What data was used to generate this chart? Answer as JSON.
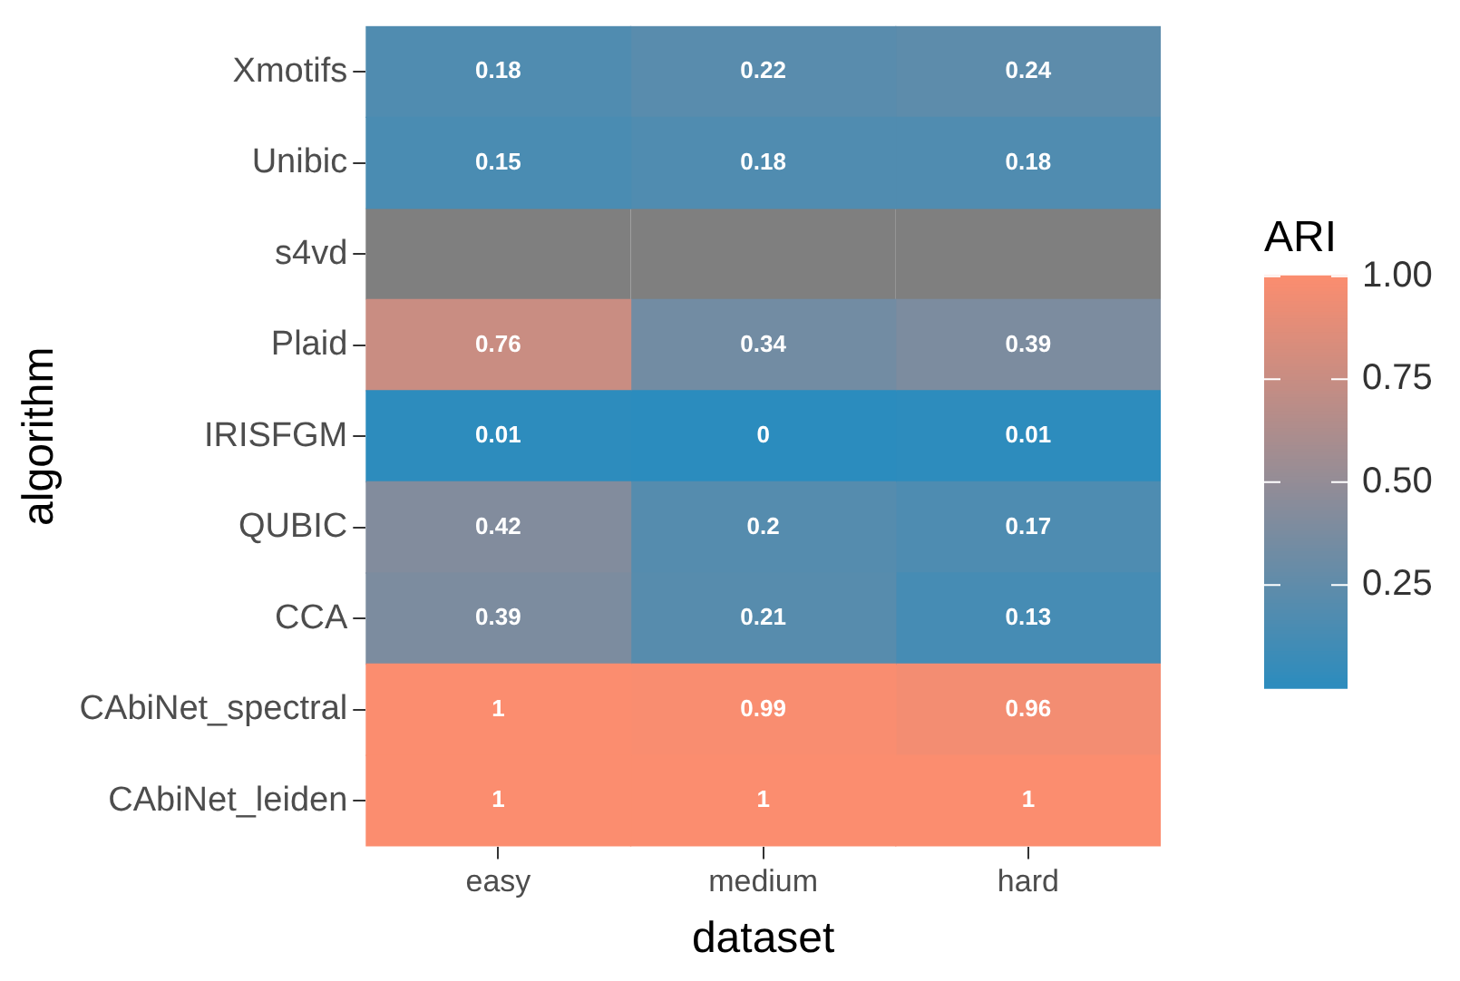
{
  "chart_data": {
    "type": "heatmap",
    "xlabel": "dataset",
    "ylabel": "algorithm",
    "clabel": "ARI",
    "categories": [
      "easy",
      "medium",
      "hard"
    ],
    "y_categories": [
      "Xmotifs",
      "Unibic",
      "s4vd",
      "Plaid",
      "IRISFGM",
      "QUBIC",
      "CCA",
      "CAbiNet_spectral",
      "CAbiNet_leiden"
    ],
    "cells": [
      [
        0.18,
        0.22,
        0.24
      ],
      [
        0.15,
        0.18,
        0.18
      ],
      [
        null,
        null,
        null
      ],
      [
        0.76,
        0.34,
        0.39
      ],
      [
        0.01,
        0,
        0.01
      ],
      [
        0.42,
        0.2,
        0.17
      ],
      [
        0.39,
        0.21,
        0.13
      ],
      [
        1,
        0.99,
        0.96
      ],
      [
        1,
        1,
        1
      ]
    ],
    "clim": [
      0,
      1
    ],
    "cticks": [
      0.25,
      {
        "value": 0.5,
        "label": "0.50"
      },
      0.75,
      {
        "value": 1,
        "label": "1.00"
      }
    ],
    "colors": [
      "#2b8cbe",
      "#fb8d6f"
    ],
    "data_labels": true
  }
}
